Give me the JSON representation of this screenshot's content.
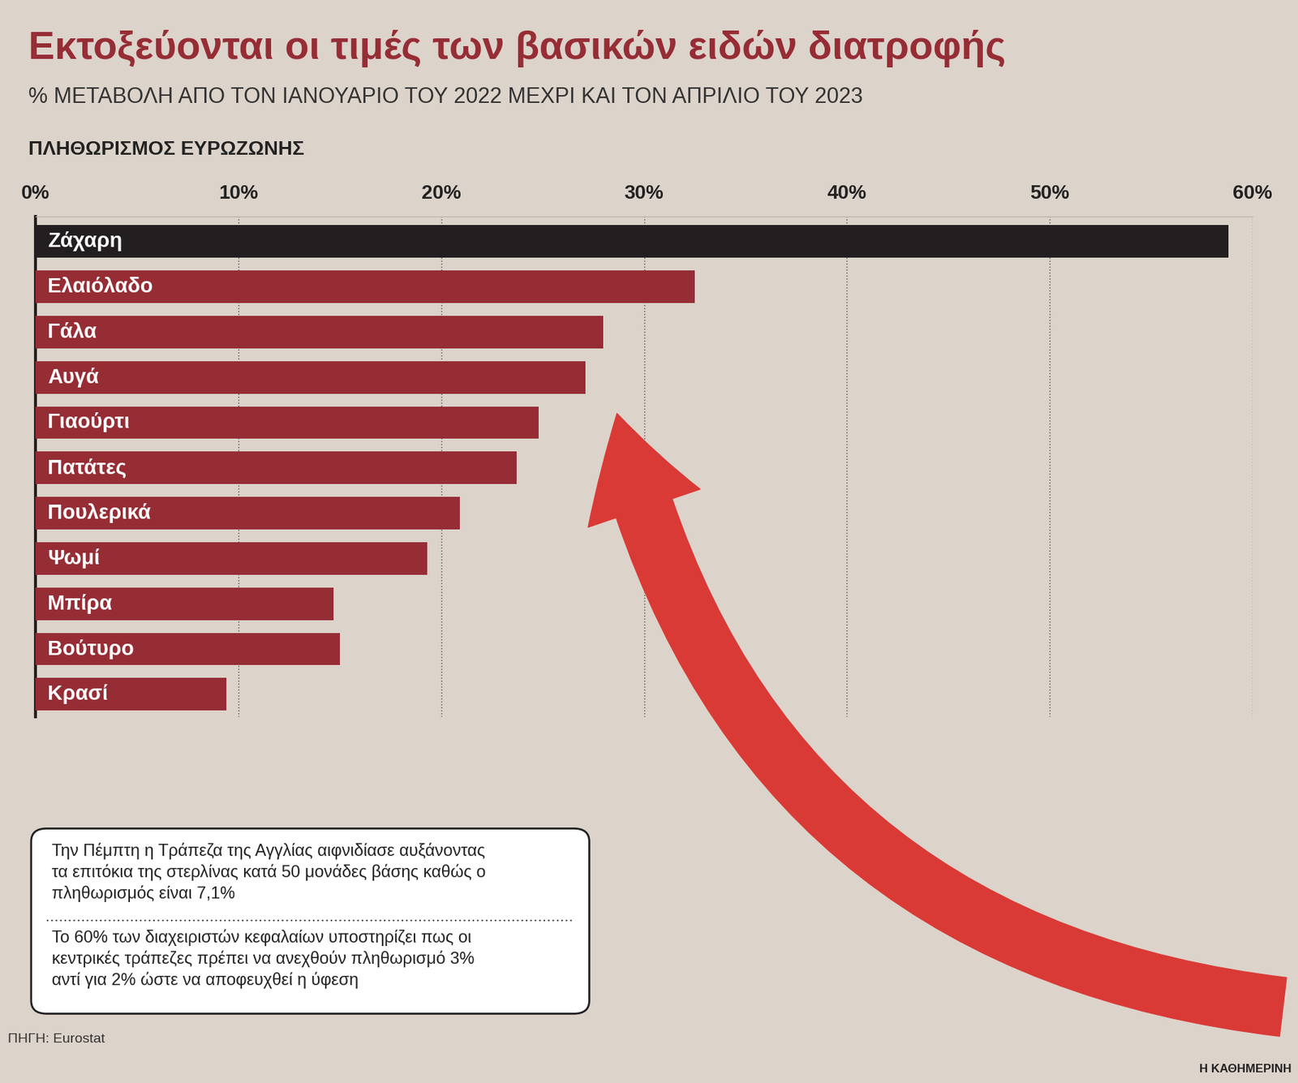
{
  "chart_data": {
    "type": "bar",
    "orientation": "horizontal",
    "title": "Εκτοξεύονται οι τιμές των βασικών ειδών διατροφής",
    "subtitle": "% ΜΕΤΑΒΟΛΗ ΑΠΟ ΤΟΝ ΙΑΝΟΥΑΡΙΟ ΤΟΥ 2022 ΜΕΧΡΙ ΚΑΙ ΤΟΝ ΑΠΡΙΛΙΟ ΤΟΥ 2023",
    "section_title": "ΠΛΗΘΩΡΙΣΜΟΣ ΕΥΡΩΖΩΝΗΣ",
    "categories": [
      "Ζάχαρη",
      "Ελαιόλαδο",
      "Γάλα",
      "Αυγά",
      "Γιαούρτι",
      "Πατάτες",
      "Πουλερικά",
      "Ψωμί",
      "Μπίρα",
      "Βούτυρο",
      "Κρασί"
    ],
    "values": [
      58.8,
      32.5,
      28.0,
      27.1,
      24.8,
      23.7,
      20.9,
      19.3,
      14.7,
      15.0,
      9.4
    ],
    "colors": [
      "#231f20",
      "#962d35",
      "#962d35",
      "#962d35",
      "#962d35",
      "#962d35",
      "#962d35",
      "#962d35",
      "#962d35",
      "#962d35",
      "#962d35"
    ],
    "xlim": [
      0,
      60
    ],
    "xticks": [
      {
        "value": 0,
        "label": "0%"
      },
      {
        "value": 10,
        "label": "10%"
      },
      {
        "value": 20,
        "label": "20%"
      },
      {
        "value": 30,
        "label": "30%"
      },
      {
        "value": 40,
        "label": "40%"
      },
      {
        "value": 50,
        "label": "50%"
      },
      {
        "value": 60,
        "label": "60%"
      }
    ],
    "grid": true,
    "tick_labels": "x",
    "notes": [
      "Την Πέμπτη η Τράπεζα της Αγγλίας αιφνιδίασε αυξάνοντας τα επιτόκια της στερλίνας κατά 50 μονάδες βάσης καθώς ο πληθωρισμός είναι 7,1%",
      "Το 60% των διαχειριστών κεφαλαίων υποστηρίζει πως οι κεντρικές τράπεζες πρέπει να ανεχθούν πληθωρισμό 3% αντί για 2% ώστε να αποφευχθεί η ύφεση"
    ],
    "source": "ΠΗΓΗ: Eurostat",
    "credit": "Η ΚΑΘΗΜΕΡΙΝΗ"
  }
}
